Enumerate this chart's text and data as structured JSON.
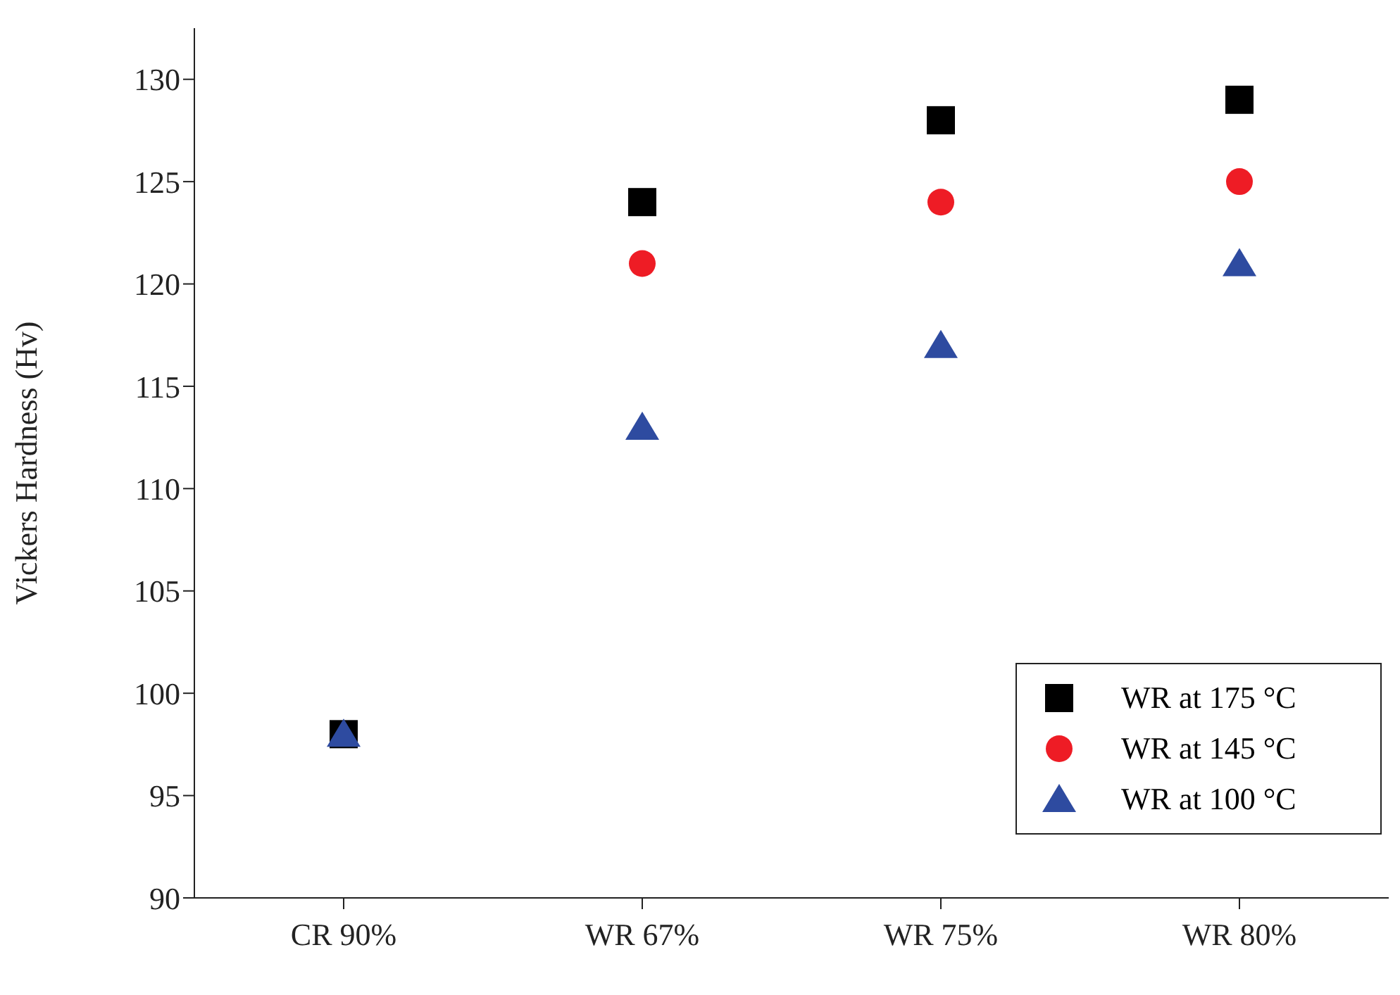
{
  "chart_data": {
    "type": "scatter",
    "ylabel": "Vickers Hardness (Hv)",
    "categories": [
      "CR 90%",
      "WR 67%",
      "WR 75%",
      "WR 80%"
    ],
    "series": [
      {
        "name": "WR at 175 °C",
        "color": "#000000",
        "marker": "square",
        "values": [
          98,
          124,
          128,
          129
        ]
      },
      {
        "name": "WR at 145 °C",
        "color": "#ee1c25",
        "marker": "circle",
        "values": [
          null,
          121,
          124,
          125
        ]
      },
      {
        "name": "WR at 100 °C",
        "color": "#2e4ba0",
        "marker": "triangle",
        "values": [
          98,
          113,
          117,
          121
        ]
      }
    ],
    "ylim": [
      90,
      132.5
    ],
    "yticks": [
      90,
      95,
      100,
      105,
      110,
      115,
      120,
      125,
      130
    ],
    "grid": false,
    "legend": "bottom right"
  }
}
